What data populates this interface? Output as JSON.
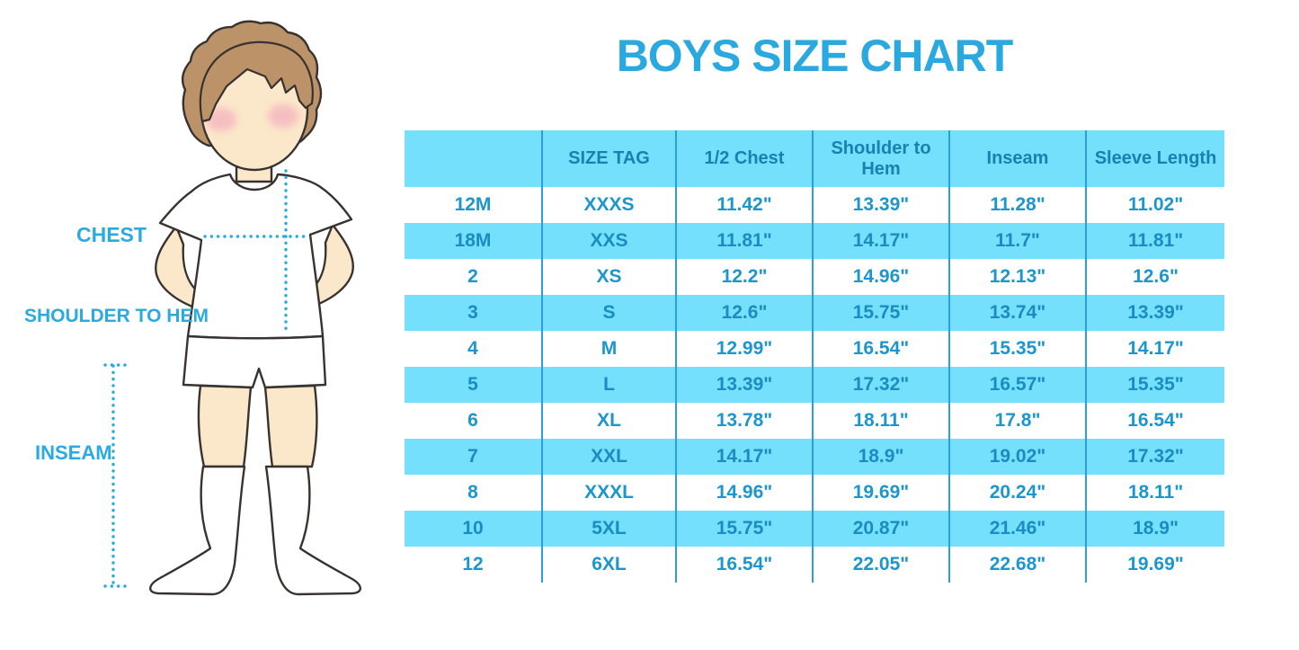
{
  "title": "BOYS SIZE CHART",
  "figure_labels": {
    "chest": "CHEST",
    "shoulder_to_hem": "SHOULDER TO HEM",
    "inseam": "INSEAM"
  },
  "colors": {
    "title_blue": "#29A9E0",
    "row_light_blue": "#74E0FC",
    "grid_line_blue": "#2B9FD6",
    "cell_text_blue": "#1B96CE",
    "header_text_blue": "#1A80B2",
    "label_dotted_blue": "#29ABE2",
    "skin": "#FBE7C9",
    "hair": "#BC9369",
    "outline": "#383230",
    "cheek_pink": "#F2A6BD",
    "background": "#FFFFFF"
  },
  "chart_data": {
    "type": "table",
    "title": "BOYS SIZE CHART",
    "legend_position": "none",
    "grid": "vertical-only",
    "striped": true,
    "columns": [
      "",
      "SIZE TAG",
      "1/2 Chest",
      "Shoulder to Hem",
      "Inseam",
      "Sleeve Length"
    ],
    "rows": [
      [
        "12M",
        "XXXS",
        "11.42\"",
        "13.39\"",
        "11.28\"",
        "11.02\""
      ],
      [
        "18M",
        "XXS",
        "11.81\"",
        "14.17\"",
        "11.7\"",
        "11.81\""
      ],
      [
        "2",
        "XS",
        "12.2\"",
        "14.96\"",
        "12.13\"",
        "12.6\""
      ],
      [
        "3",
        "S",
        "12.6\"",
        "15.75\"",
        "13.74\"",
        "13.39\""
      ],
      [
        "4",
        "M",
        "12.99\"",
        "16.54\"",
        "15.35\"",
        "14.17\""
      ],
      [
        "5",
        "L",
        "13.39\"",
        "17.32\"",
        "16.57\"",
        "15.35\""
      ],
      [
        "6",
        "XL",
        "13.78\"",
        "18.11\"",
        "17.8\"",
        "16.54\""
      ],
      [
        "7",
        "XXL",
        "14.17\"",
        "18.9\"",
        "19.02\"",
        "17.32\""
      ],
      [
        "8",
        "XXXL",
        "14.96\"",
        "19.69\"",
        "20.24\"",
        "18.11\""
      ],
      [
        "10",
        "5XL",
        "15.75\"",
        "20.87\"",
        "21.46\"",
        "18.9\""
      ],
      [
        "12",
        "6XL",
        "16.54\"",
        "22.05\"",
        "22.68\"",
        "19.69\""
      ]
    ]
  }
}
